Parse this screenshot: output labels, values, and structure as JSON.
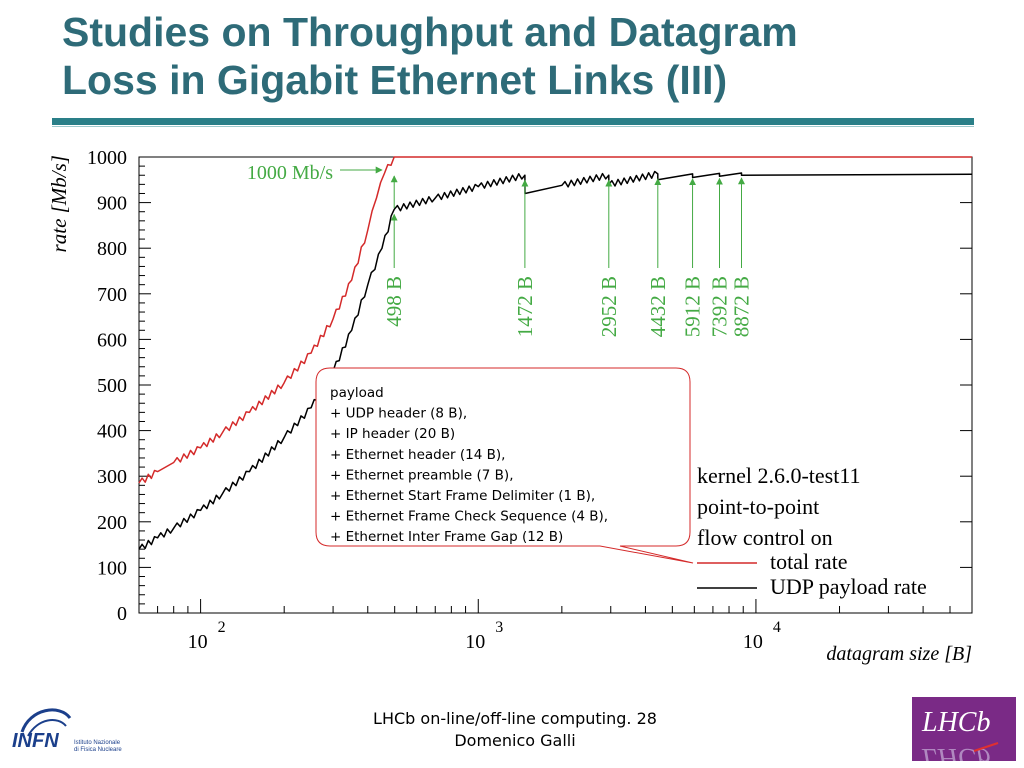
{
  "slide": {
    "title_line1": "Studies on Throughput and Datagram",
    "title_line2": "Loss in Gigabit Ethernet Links (III)",
    "footer_line1": "LHCb on-line/off-line computing. 28",
    "footer_line2": "Domenico Galli",
    "logo_left_text": "INFN",
    "logo_left_subtext1": "Istituto Nazionale",
    "logo_left_subtext2": "di Fisica Nucleare",
    "logo_right_text": "LHCb"
  },
  "chart_data": {
    "type": "line",
    "xlabel": "datagram size [B]",
    "ylabel": "rate [Mb/s]",
    "x_scale": "log",
    "xlim": [
      60,
      60000
    ],
    "ylim": [
      0,
      1000
    ],
    "y_ticks": [
      0,
      100,
      200,
      300,
      400,
      500,
      600,
      700,
      800,
      900,
      1000
    ],
    "x_ticks": [
      {
        "base": "10",
        "exp": "2",
        "value": 100
      },
      {
        "base": "10",
        "exp": "3",
        "value": 1000
      },
      {
        "base": "10",
        "exp": "4",
        "value": 10000
      }
    ],
    "series": [
      {
        "name": "total rate",
        "color": "#d42a2a",
        "points": [
          [
            60,
            285
          ],
          [
            70,
            310
          ],
          [
            80,
            330
          ],
          [
            100,
            362
          ],
          [
            120,
            396
          ],
          [
            150,
            440
          ],
          [
            200,
            505
          ],
          [
            250,
            570
          ],
          [
            300,
            645
          ],
          [
            350,
            730
          ],
          [
            400,
            840
          ],
          [
            430,
            910
          ],
          [
            460,
            965
          ],
          [
            498,
            1000
          ],
          [
            60000,
            1000
          ]
        ]
      },
      {
        "name": "UDP payload rate",
        "color": "#000000",
        "points": [
          [
            60,
            140
          ],
          [
            70,
            165
          ],
          [
            80,
            186
          ],
          [
            100,
            225
          ],
          [
            120,
            262
          ],
          [
            150,
            310
          ],
          [
            200,
            385
          ],
          [
            250,
            450
          ],
          [
            300,
            530
          ],
          [
            350,
            620
          ],
          [
            400,
            720
          ],
          [
            450,
            800
          ],
          [
            498,
            885
          ],
          [
            700,
            910
          ],
          [
            1000,
            935
          ],
          [
            1472,
            960
          ],
          [
            1473,
            920
          ],
          [
            2000,
            938
          ],
          [
            2952,
            960
          ],
          [
            2953,
            940
          ],
          [
            4432,
            963
          ],
          [
            4433,
            950
          ],
          [
            5912,
            963
          ],
          [
            5913,
            955
          ],
          [
            7392,
            964
          ],
          [
            7393,
            958
          ],
          [
            8872,
            965
          ],
          [
            8873,
            960
          ],
          [
            60000,
            962
          ]
        ]
      }
    ],
    "annotations": {
      "rate_limit": {
        "label": "1000 Mb/s",
        "color": "#44aa44"
      },
      "markers": [
        {
          "x": 498,
          "label": "498 B"
        },
        {
          "x": 1472,
          "label": "1472 B"
        },
        {
          "x": 2952,
          "label": "2952 B"
        },
        {
          "x": 4432,
          "label": "4432 B"
        },
        {
          "x": 5912,
          "label": "5912 B"
        },
        {
          "x": 7392,
          "label": "7392 B"
        },
        {
          "x": 8872,
          "label": "8872 B"
        }
      ],
      "callout_lines": [
        "payload",
        "+ UDP header (8 B),",
        "+ IP header (20 B)",
        "+ Ethernet header (14 B),",
        "+ Ethernet preamble (7 B),",
        "+ Ethernet Start Frame Delimiter (1 B),",
        "+ Ethernet Frame Check Sequence (4 B),",
        "+ Ethernet Inter Frame Gap (12 B)"
      ],
      "info_lines": [
        "kernel 2.6.0-test11",
        "point-to-point",
        "flow control on"
      ]
    },
    "legend": {
      "placement": "bottom-right",
      "entries": [
        {
          "label": "total rate",
          "color": "#d42a2a"
        },
        {
          "label": "UDP payload rate",
          "color": "#000000"
        }
      ]
    }
  }
}
